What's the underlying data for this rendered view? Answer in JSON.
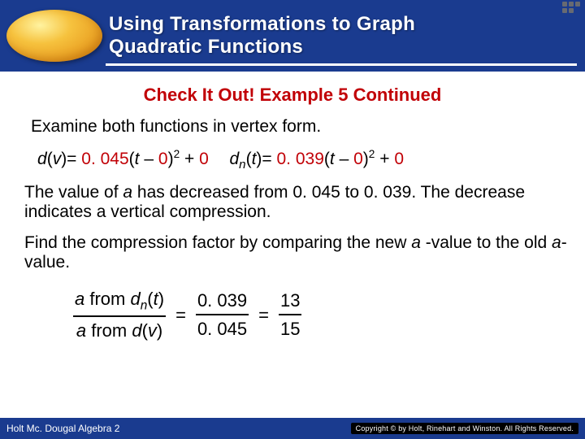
{
  "header": {
    "title_l1": "Using Transformations to Graph",
    "title_l2": "Quadratic Functions"
  },
  "subtitle": "Check It Out! Example 5 Continued",
  "body": {
    "intro": "Examine both functions in vertex form.",
    "eq1": {
      "lhs_fn": "d",
      "lhs_arg": "v",
      "a": "0. 045",
      "var": "t",
      "h": "0",
      "exp": "2",
      "k": "0"
    },
    "eq2": {
      "lhs_fn": "d",
      "lhs_sub": "n",
      "lhs_arg": "t",
      "a": "0. 039",
      "var": "t",
      "h": "0",
      "exp": "2",
      "k": "0"
    },
    "para2_a": "The value of ",
    "para2_b": " has decreased from 0. 045 to 0. 039. The decrease indicates a vertical compression.",
    "para3_a": "Find the compression factor by comparing the new ",
    "para3_b": " -value to the old ",
    "para3_c": "-value.",
    "frac": {
      "num_label_a": "a",
      "num_label_txt": " from ",
      "num_fn": "d",
      "num_sub": "n",
      "num_arg": "t",
      "den_label_a": "a",
      "den_label_txt": " from ",
      "den_fn": "d",
      "den_arg": "v",
      "mid_num": "0. 039",
      "mid_den": "0. 045",
      "res_num": "13",
      "res_den": "15"
    }
  },
  "footer": {
    "book": "Holt Mc. Dougal Algebra 2",
    "copyright": "Copyright © by Holt, Rinehart and Winston. All Rights Reserved."
  },
  "colors": {
    "header_bg": "#1a3b8f",
    "accent": "#c10006",
    "oval_hi": "#f6c23e"
  }
}
